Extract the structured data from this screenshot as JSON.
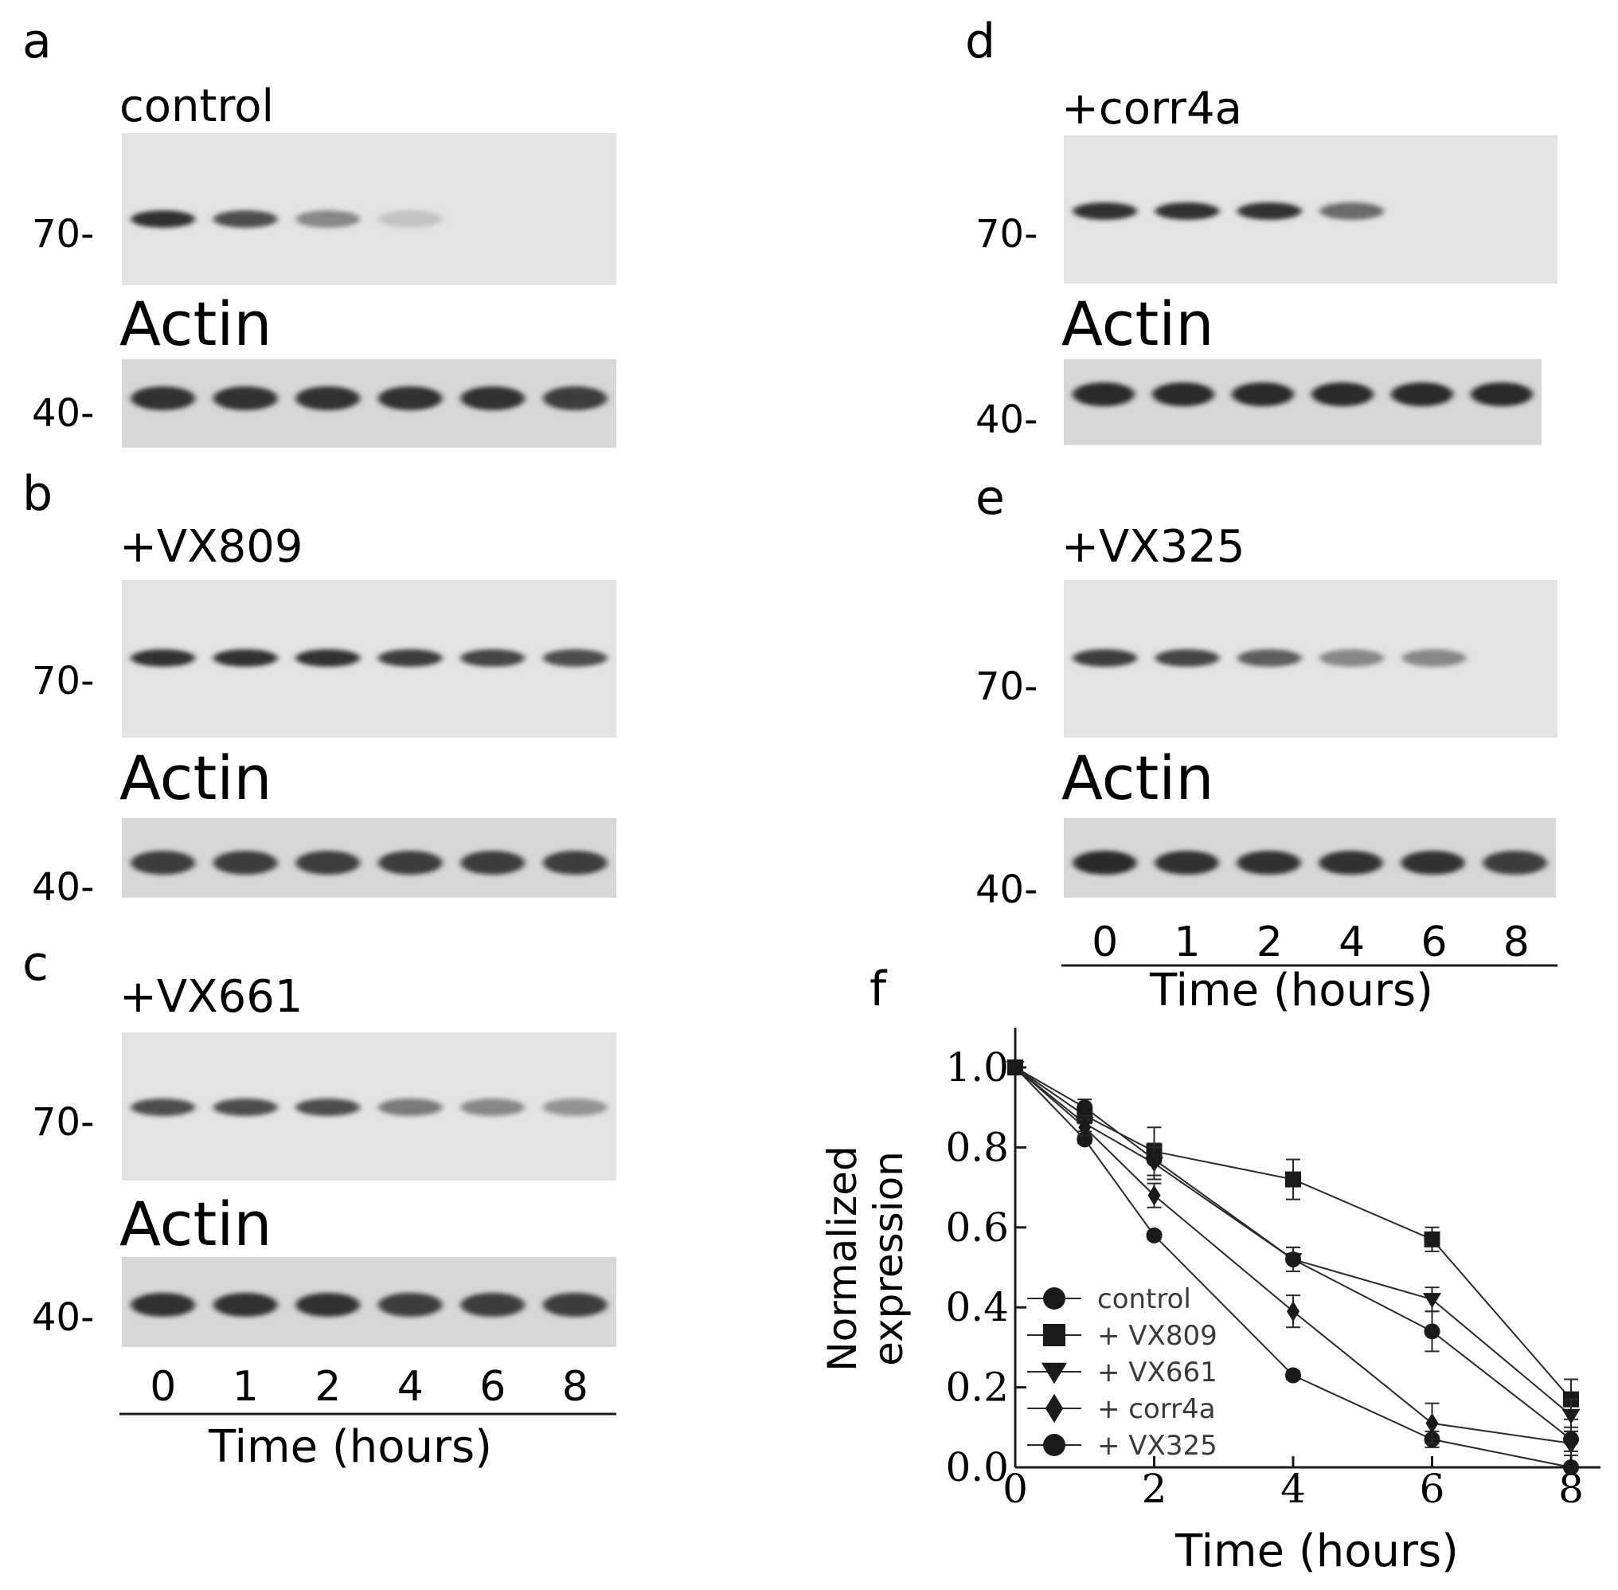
{
  "panels": [
    {
      "label": "a",
      "sample": "control",
      "mw_top": "70-",
      "actin_label": "Actin",
      "mw_bottom": "40-",
      "band_intensity": [
        0.85,
        0.7,
        0.5,
        0.2,
        0.0,
        0.0
      ],
      "actin_intensity": [
        0.85,
        0.85,
        0.85,
        0.85,
        0.85,
        0.8
      ]
    },
    {
      "label": "b",
      "sample": "+VX809",
      "mw_top": "70-",
      "actin_label": "Actin",
      "mw_bottom": "40-",
      "band_intensity": [
        0.85,
        0.85,
        0.85,
        0.8,
        0.75,
        0.7
      ],
      "actin_intensity": [
        0.8,
        0.8,
        0.8,
        0.8,
        0.8,
        0.8
      ]
    },
    {
      "label": "c",
      "sample": "+VX661",
      "mw_top": "70-",
      "actin_label": "Actin",
      "mw_bottom": "40-",
      "band_intensity": [
        0.7,
        0.7,
        0.7,
        0.55,
        0.5,
        0.45
      ],
      "actin_intensity": [
        0.85,
        0.85,
        0.85,
        0.8,
        0.8,
        0.8
      ]
    },
    {
      "label": "d",
      "sample": "+corr4a",
      "mw_top": "70-",
      "actin_label": "Actin",
      "mw_bottom": "40-",
      "band_intensity": [
        0.85,
        0.85,
        0.85,
        0.6,
        0.0,
        0.0
      ],
      "actin_intensity": [
        0.9,
        0.9,
        0.9,
        0.9,
        0.9,
        0.9
      ]
    },
    {
      "label": "e",
      "sample": "+VX325",
      "mw_top": "70-",
      "actin_label": "Actin",
      "mw_bottom": "40-",
      "band_intensity": [
        0.8,
        0.75,
        0.65,
        0.5,
        0.5,
        0.0
      ],
      "actin_intensity": [
        0.9,
        0.85,
        0.85,
        0.85,
        0.85,
        0.8
      ]
    }
  ],
  "lanes": [
    "0",
    "1",
    "2",
    "4",
    "6",
    "8"
  ],
  "time_axis_label": "Time (hours)",
  "chart_data": {
    "type": "line",
    "panel_label": "f",
    "xlabel": "Time (hours)",
    "ylabel": "Normalized expression",
    "x": [
      0,
      1,
      2,
      4,
      6,
      8
    ],
    "xticks": [
      "0",
      "2",
      "4",
      "6",
      "8"
    ],
    "yticks": [
      "0.0",
      "0.2",
      "0.4",
      "0.6",
      "0.8",
      "1.0"
    ],
    "xlim": [
      0,
      8
    ],
    "ylim": [
      0,
      1.0
    ],
    "grid": false,
    "legend_position": "bottom-left",
    "series": [
      {
        "name": "control",
        "marker": "circle",
        "values": [
          1.0,
          0.82,
          0.58,
          0.23,
          0.07,
          0.0
        ],
        "errors": [
          0,
          0.01,
          0.01,
          0.01,
          0.02,
          0.0
        ]
      },
      {
        "name": "+ VX809",
        "marker": "square",
        "values": [
          1.0,
          0.88,
          0.79,
          0.72,
          0.57,
          0.17
        ],
        "errors": [
          0,
          0.02,
          0.06,
          0.05,
          0.03,
          0.05
        ]
      },
      {
        "name": "+ VX661",
        "marker": "triangle-down",
        "values": [
          1.0,
          0.86,
          0.76,
          0.52,
          0.42,
          0.13
        ],
        "errors": [
          0,
          0.02,
          0.04,
          0.03,
          0.03,
          0.04
        ]
      },
      {
        "name": "+ corr4a",
        "marker": "diamond",
        "values": [
          1.0,
          0.85,
          0.68,
          0.39,
          0.11,
          0.06
        ],
        "errors": [
          0,
          0.02,
          0.03,
          0.04,
          0.05,
          0.03
        ]
      },
      {
        "name": "+ VX325",
        "marker": "circle",
        "values": [
          1.0,
          0.9,
          0.77,
          0.52,
          0.34,
          0.07
        ],
        "errors": [
          0,
          0.02,
          0.04,
          0.03,
          0.05,
          0.03
        ]
      }
    ]
  }
}
